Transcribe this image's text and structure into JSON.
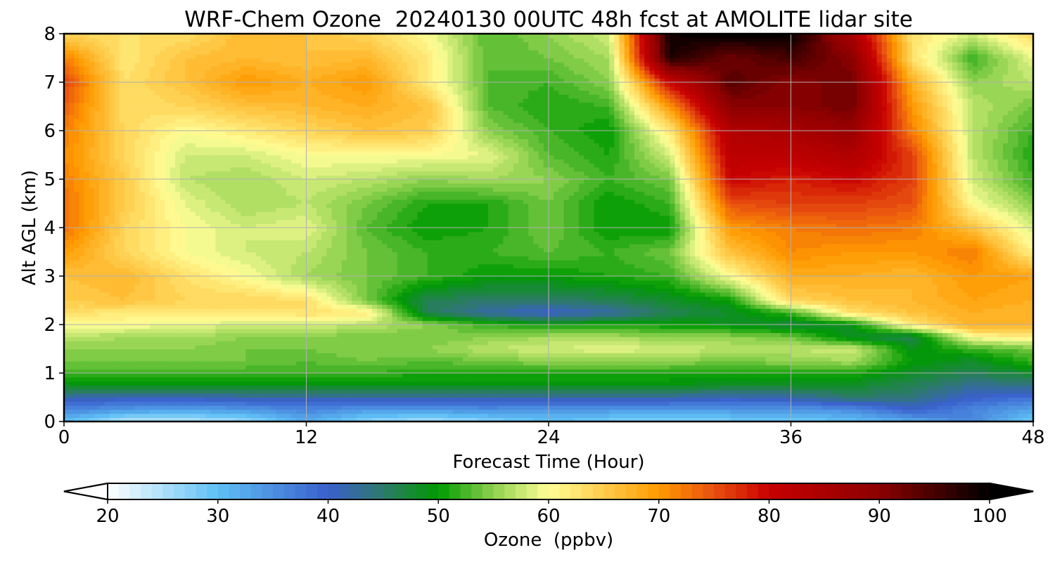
{
  "chart_data": {
    "type": "heatmap",
    "title": "WRF-Chem Ozone  20240130 00UTC 48h fcst at AMOLITE lidar site",
    "xlabel": "Forecast Time (Hour)",
    "ylabel": "Alt AGL (km)",
    "xlim": [
      0,
      48
    ],
    "ylim": [
      0,
      8
    ],
    "x_ticks": [
      "0",
      "12",
      "24",
      "36",
      "48"
    ],
    "y_ticks": [
      "0",
      "1",
      "2",
      "3",
      "4",
      "5",
      "6",
      "7",
      "8"
    ],
    "grid": true,
    "colorbar": {
      "label": "Ozone  (ppbv)",
      "min": 20,
      "max": 100,
      "step": 1,
      "extend": "both",
      "tick_labels": [
        "20",
        "30",
        "40",
        "50",
        "60",
        "70",
        "80",
        "90",
        "100"
      ],
      "color_stops": [
        {
          "value": 20,
          "color": "#ffffff"
        },
        {
          "value": 30,
          "color": "#5ec0f5"
        },
        {
          "value": 40,
          "color": "#3a5fcd"
        },
        {
          "value": 45,
          "color": "#2e7a6a"
        },
        {
          "value": 50,
          "color": "#009a00"
        },
        {
          "value": 55,
          "color": "#8fd14f"
        },
        {
          "value": 60,
          "color": "#fffe96"
        },
        {
          "value": 70,
          "color": "#ff9a00"
        },
        {
          "value": 75,
          "color": "#e85010"
        },
        {
          "value": 80,
          "color": "#c80000"
        },
        {
          "value": 90,
          "color": "#8c0000"
        },
        {
          "value": 100,
          "color": "#000000"
        }
      ]
    },
    "grid_x": [
      0,
      3,
      6,
      9,
      12,
      15,
      18,
      21,
      24,
      27,
      30,
      33,
      36,
      39,
      42,
      45,
      48
    ],
    "grid_y": [
      0,
      0.25,
      0.5,
      0.75,
      1,
      1.25,
      1.5,
      1.75,
      2,
      2.25,
      2.5,
      3,
      3.5,
      4,
      4.5,
      5,
      5.5,
      6,
      6.5,
      7,
      7.5,
      8
    ],
    "z_rows": [
      [
        30,
        24,
        24,
        26,
        32,
        27,
        25,
        27,
        30,
        28,
        27,
        28,
        28,
        30,
        32,
        36,
        28
      ],
      [
        36,
        34,
        33,
        34,
        36,
        34,
        34,
        35,
        34,
        34,
        34,
        34,
        34,
        35,
        40,
        36,
        33
      ],
      [
        42,
        41,
        41,
        42,
        42,
        42,
        42,
        42,
        42,
        42,
        42,
        41,
        42,
        45,
        44,
        40,
        38
      ],
      [
        49,
        49,
        49,
        49,
        49,
        49,
        49,
        49,
        49,
        49,
        49,
        48,
        48,
        48,
        46,
        43,
        44
      ],
      [
        52,
        52,
        52,
        52,
        52,
        52,
        51,
        51,
        51,
        51,
        51,
        51,
        51,
        51,
        48,
        46,
        48
      ],
      [
        54,
        54,
        54,
        54,
        53,
        54,
        53,
        54,
        55,
        55,
        55,
        54,
        55,
        56,
        50,
        48,
        52
      ],
      [
        55,
        55,
        55,
        54,
        54,
        55,
        55,
        57,
        58,
        59,
        58,
        57,
        57,
        58,
        49,
        52,
        54
      ],
      [
        57,
        56,
        56,
        55,
        55,
        54,
        54,
        55,
        56,
        56,
        55,
        55,
        54,
        48,
        46,
        60,
        62
      ],
      [
        60,
        60,
        59,
        58,
        58,
        57,
        55,
        52,
        50,
        51,
        50,
        49,
        47,
        49,
        62,
        68,
        67
      ],
      [
        63,
        62,
        62,
        62,
        63,
        62,
        46,
        42,
        40,
        42,
        46,
        48,
        52,
        63,
        66,
        68,
        67
      ],
      [
        65,
        66,
        64,
        64,
        63,
        54,
        46,
        45,
        45,
        46,
        48,
        50,
        64,
        66,
        67,
        69,
        68
      ],
      [
        66,
        67,
        63,
        60,
        56,
        54,
        52,
        50,
        50,
        51,
        52,
        60,
        68,
        68,
        67,
        70,
        69
      ],
      [
        70,
        64,
        60,
        58,
        57,
        54,
        52,
        52,
        53,
        52,
        54,
        66,
        71,
        70,
        70,
        72,
        61
      ],
      [
        73,
        64,
        60,
        58,
        59,
        53,
        50,
        51,
        54,
        50,
        50,
        70,
        72,
        73,
        72,
        66,
        58
      ],
      [
        73,
        65,
        59,
        56,
        57,
        54,
        51,
        51,
        54,
        50,
        52,
        75,
        76,
        76,
        75,
        60,
        55
      ],
      [
        72,
        65,
        57,
        56,
        58,
        57,
        55,
        56,
        55,
        52,
        54,
        80,
        78,
        80,
        76,
        58,
        52
      ],
      [
        71,
        64,
        58,
        58,
        60,
        60,
        60,
        59,
        53,
        51,
        58,
        82,
        82,
        84,
        76,
        57,
        51
      ],
      [
        72,
        64,
        60,
        62,
        64,
        66,
        65,
        55,
        52,
        50,
        62,
        84,
        85,
        88,
        72,
        57,
        52
      ],
      [
        74,
        63,
        64,
        66,
        67,
        68,
        66,
        53,
        51,
        52,
        70,
        90,
        90,
        92,
        70,
        57,
        54
      ],
      [
        76,
        63,
        66,
        70,
        68,
        70,
        62,
        53,
        52,
        55,
        80,
        94,
        90,
        92,
        68,
        55,
        57
      ],
      [
        72,
        62,
        66,
        67,
        66,
        67,
        62,
        53,
        54,
        56,
        98,
        92,
        95,
        90,
        63,
        52,
        59
      ],
      [
        64,
        63,
        63,
        67,
        66,
        64,
        60,
        53,
        55,
        58,
        99,
        100,
        100,
        85,
        63,
        58,
        64
      ]
    ]
  }
}
